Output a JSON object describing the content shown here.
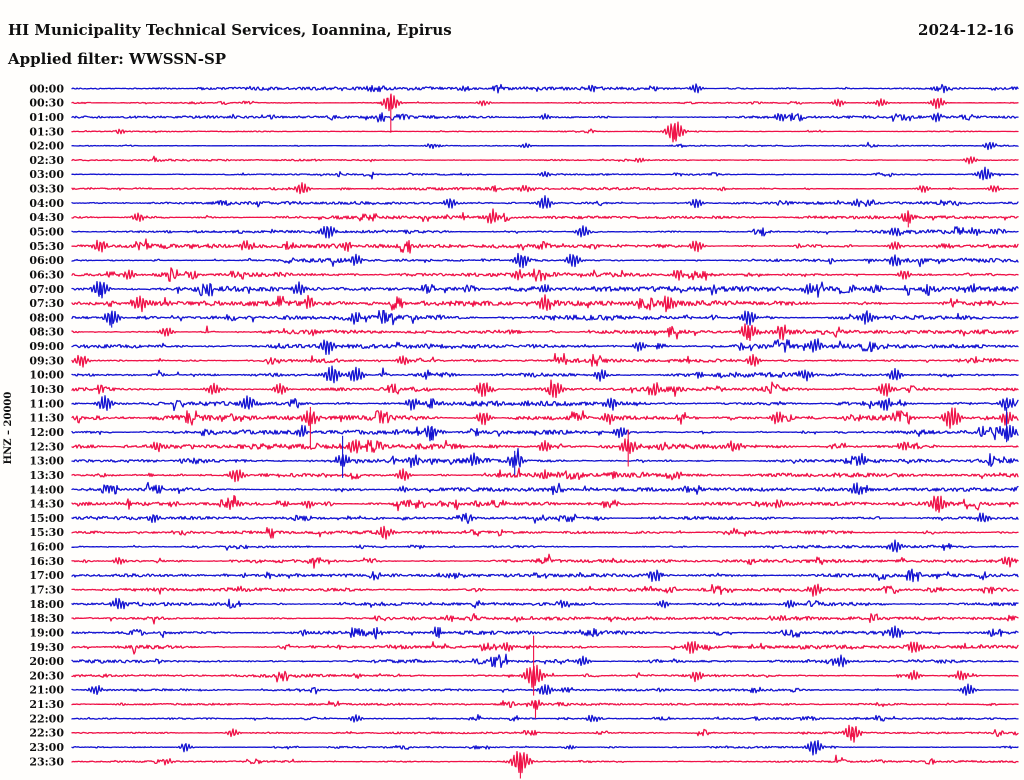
{
  "header": {
    "title": "HI Municipality Technical Services, Ioannina, Epirus",
    "date": "2024-12-16",
    "filter": "Applied filter: WWSSN-SP"
  },
  "chart_data": {
    "type": "line",
    "subtype": "helicorder-dayplot",
    "title": "HI Municipality Technical Services, Ioannina, Epirus",
    "date": "2024-12-16",
    "applied_filter": "WWSSN-SP",
    "y_axis_label": "HNZ – 20000",
    "minutes_per_row": 30,
    "n_rows": 48,
    "x_range": [
      0,
      30
    ],
    "grid": false,
    "legend": false,
    "background": "#fffefc",
    "palette": {
      "blue": "#1312d1",
      "red": "#ef1147"
    },
    "rows": [
      {
        "time": "00:00",
        "color": "blue",
        "noise": 1.4
      },
      {
        "time": "00:30",
        "color": "red",
        "noise": 0.5
      },
      {
        "time": "01:00",
        "color": "blue",
        "noise": 1.3
      },
      {
        "time": "01:30",
        "color": "red",
        "noise": 0.6
      },
      {
        "time": "02:00",
        "color": "blue",
        "noise": 0.6
      },
      {
        "time": "02:30",
        "color": "red",
        "noise": 0.9
      },
      {
        "time": "03:00",
        "color": "blue",
        "noise": 0.7
      },
      {
        "time": "03:30",
        "color": "red",
        "noise": 1.2
      },
      {
        "time": "04:00",
        "color": "blue",
        "noise": 1.4
      },
      {
        "time": "04:30",
        "color": "red",
        "noise": 1.4
      },
      {
        "time": "05:00",
        "color": "blue",
        "noise": 1.8
      },
      {
        "time": "05:30",
        "color": "red",
        "noise": 1.8
      },
      {
        "time": "06:00",
        "color": "blue",
        "noise": 2.0
      },
      {
        "time": "06:30",
        "color": "red",
        "noise": 1.9
      },
      {
        "time": "07:00",
        "color": "blue",
        "noise": 2.3
      },
      {
        "time": "07:30",
        "color": "red",
        "noise": 2.3
      },
      {
        "time": "08:00",
        "color": "blue",
        "noise": 2.3
      },
      {
        "time": "08:30",
        "color": "red",
        "noise": 2.1
      },
      {
        "time": "09:00",
        "color": "blue",
        "noise": 2.1
      },
      {
        "time": "09:30",
        "color": "red",
        "noise": 2.1
      },
      {
        "time": "10:00",
        "color": "blue",
        "noise": 2.4
      },
      {
        "time": "10:30",
        "color": "red",
        "noise": 2.4
      },
      {
        "time": "11:00",
        "color": "blue",
        "noise": 2.4
      },
      {
        "time": "11:30",
        "color": "red",
        "noise": 2.4
      },
      {
        "time": "12:00",
        "color": "blue",
        "noise": 2.2
      },
      {
        "time": "12:30",
        "color": "red",
        "noise": 2.5
      },
      {
        "time": "13:00",
        "color": "blue",
        "noise": 2.1
      },
      {
        "time": "13:30",
        "color": "red",
        "noise": 2.0
      },
      {
        "time": "14:00",
        "color": "blue",
        "noise": 1.6
      },
      {
        "time": "14:30",
        "color": "red",
        "noise": 1.6
      },
      {
        "time": "15:00",
        "color": "blue",
        "noise": 1.5
      },
      {
        "time": "15:30",
        "color": "red",
        "noise": 1.5
      },
      {
        "time": "16:00",
        "color": "blue",
        "noise": 1.5
      },
      {
        "time": "16:30",
        "color": "red",
        "noise": 1.5
      },
      {
        "time": "17:00",
        "color": "blue",
        "noise": 1.4
      },
      {
        "time": "17:30",
        "color": "red",
        "noise": 1.5
      },
      {
        "time": "18:00",
        "color": "blue",
        "noise": 1.6
      },
      {
        "time": "18:30",
        "color": "red",
        "noise": 1.6
      },
      {
        "time": "19:00",
        "color": "blue",
        "noise": 1.6
      },
      {
        "time": "19:30",
        "color": "red",
        "noise": 1.7
      },
      {
        "time": "20:00",
        "color": "blue",
        "noise": 1.7
      },
      {
        "time": "20:30",
        "color": "red",
        "noise": 1.6
      },
      {
        "time": "21:00",
        "color": "blue",
        "noise": 1.0
      },
      {
        "time": "21:30",
        "color": "red",
        "noise": 0.9
      },
      {
        "time": "22:00",
        "color": "blue",
        "noise": 1.0
      },
      {
        "time": "22:30",
        "color": "red",
        "noise": 0.8
      },
      {
        "time": "23:00",
        "color": "blue",
        "noise": 0.9
      },
      {
        "time": "23:30",
        "color": "red",
        "noise": 0.8
      }
    ],
    "events": [
      [
        0,
        0.55,
        3
      ],
      [
        0,
        0.66,
        4
      ],
      [
        0,
        0.92,
        5
      ],
      [
        1,
        0.337,
        9,
        30,
        8
      ],
      [
        1,
        0.435,
        3
      ],
      [
        1,
        0.81,
        4
      ],
      [
        1,
        0.855,
        4
      ],
      [
        1,
        0.915,
        6
      ],
      [
        2,
        0.5,
        3
      ],
      [
        2,
        0.75,
        5
      ],
      [
        2,
        0.915,
        4
      ],
      [
        3,
        0.05,
        3
      ],
      [
        3,
        0.637,
        11,
        8,
        6
      ],
      [
        4,
        0.38,
        2.5
      ],
      [
        4,
        0.48,
        2.5
      ],
      [
        4,
        0.97,
        4
      ],
      [
        5,
        0.6,
        3
      ],
      [
        5,
        0.95,
        4
      ],
      [
        6,
        0.5,
        3
      ],
      [
        6,
        0.965,
        7
      ],
      [
        7,
        0.243,
        6
      ],
      [
        7,
        0.48,
        4
      ],
      [
        7,
        0.9,
        4
      ],
      [
        7,
        0.975,
        4
      ],
      [
        8,
        0.4,
        5
      ],
      [
        8,
        0.5,
        7
      ],
      [
        8,
        0.66,
        5
      ],
      [
        8,
        0.83,
        4
      ],
      [
        9,
        0.07,
        4
      ],
      [
        9,
        0.445,
        7
      ],
      [
        9,
        0.884,
        6,
        10,
        4
      ],
      [
        10,
        0.27,
        7
      ],
      [
        10,
        0.54,
        6
      ],
      [
        10,
        0.87,
        4
      ],
      [
        10,
        0.955,
        4
      ],
      [
        11,
        0.03,
        6
      ],
      [
        11,
        0.185,
        5
      ],
      [
        11,
        0.29,
        5
      ],
      [
        11,
        0.66,
        6
      ],
      [
        11,
        0.87,
        5
      ],
      [
        12,
        0.3,
        5
      ],
      [
        12,
        0.475,
        8
      ],
      [
        12,
        0.53,
        7
      ],
      [
        12,
        0.87,
        6
      ],
      [
        13,
        0.06,
        5
      ],
      [
        13,
        0.47,
        5
      ],
      [
        13,
        0.64,
        5
      ],
      [
        13,
        0.88,
        5
      ],
      [
        14,
        0.03,
        9,
        6,
        4
      ],
      [
        14,
        0.24,
        6
      ],
      [
        14,
        0.5,
        5
      ],
      [
        14,
        0.78,
        6
      ],
      [
        14,
        0.95,
        5
      ],
      [
        15,
        0.072,
        8
      ],
      [
        15,
        0.25,
        5
      ],
      [
        15,
        0.5,
        8
      ],
      [
        15,
        0.63,
        8,
        6,
        0
      ],
      [
        16,
        0.042,
        8,
        10,
        4
      ],
      [
        16,
        0.3,
        5
      ],
      [
        16,
        0.715,
        8
      ],
      [
        16,
        0.84,
        7
      ],
      [
        17,
        0.1,
        5
      ],
      [
        17,
        0.715,
        9,
        6,
        4
      ],
      [
        17,
        0.75,
        7
      ],
      [
        18,
        0.27,
        8
      ],
      [
        18,
        0.6,
        5
      ],
      [
        18,
        0.785,
        7
      ],
      [
        19,
        0.01,
        6
      ],
      [
        19,
        0.35,
        5
      ],
      [
        19,
        0.72,
        6
      ],
      [
        20,
        0.275,
        9
      ],
      [
        20,
        0.3,
        8
      ],
      [
        20,
        0.56,
        6
      ],
      [
        20,
        0.775,
        6
      ],
      [
        20,
        0.87,
        6
      ],
      [
        21,
        0.15,
        6
      ],
      [
        21,
        0.22,
        6
      ],
      [
        21,
        0.435,
        8
      ],
      [
        21,
        0.51,
        9
      ],
      [
        21,
        0.615,
        6
      ],
      [
        21,
        0.86,
        7
      ],
      [
        22,
        0.035,
        8
      ],
      [
        22,
        0.185,
        8
      ],
      [
        22,
        0.36,
        6
      ],
      [
        22,
        0.57,
        6
      ],
      [
        22,
        0.86,
        6
      ],
      [
        22,
        0.988,
        7
      ],
      [
        23,
        0.252,
        8,
        29,
        11
      ],
      [
        23,
        0.435,
        7
      ],
      [
        23,
        0.567,
        6
      ],
      [
        23,
        0.745,
        6
      ],
      [
        23,
        0.93,
        11
      ],
      [
        23,
        0.988,
        7
      ],
      [
        24,
        0.243,
        6
      ],
      [
        24,
        0.38,
        7,
        8,
        0
      ],
      [
        24,
        0.58,
        6
      ],
      [
        24,
        0.988,
        9,
        10,
        25
      ],
      [
        25,
        0.09,
        5
      ],
      [
        25,
        0.3,
        6
      ],
      [
        25,
        0.5,
        6
      ],
      [
        25,
        0.588,
        8,
        20,
        17
      ],
      [
        25,
        0.7,
        5
      ],
      [
        25,
        0.88,
        5
      ],
      [
        26,
        0.286,
        7,
        17,
        25
      ],
      [
        26,
        0.36,
        6
      ],
      [
        26,
        0.425,
        6
      ],
      [
        26,
        0.468,
        7,
        14,
        10
      ],
      [
        26,
        0.835,
        6
      ],
      [
        27,
        0.174,
        7
      ],
      [
        27,
        0.35,
        6
      ],
      [
        27,
        0.5,
        5
      ],
      [
        28,
        0.35,
        3
      ],
      [
        28,
        0.83,
        5
      ],
      [
        29,
        0.172,
        5,
        0,
        8
      ],
      [
        29,
        0.25,
        4
      ],
      [
        29,
        0.915,
        9,
        6,
        0
      ],
      [
        30,
        0.086,
        4
      ],
      [
        30,
        0.963,
        5
      ],
      [
        31,
        0.33,
        6
      ],
      [
        31,
        0.7,
        3
      ],
      [
        32,
        0.87,
        6
      ],
      [
        33,
        0.05,
        4
      ],
      [
        33,
        0.99,
        5
      ],
      [
        34,
        0.615,
        6
      ],
      [
        35,
        0.785,
        6
      ],
      [
        36,
        0.05,
        6
      ],
      [
        36,
        0.52,
        4
      ],
      [
        36,
        0.625,
        4
      ],
      [
        36,
        0.76,
        4
      ],
      [
        37,
        0.4,
        3
      ],
      [
        37,
        0.75,
        3
      ],
      [
        38,
        0.323,
        4
      ],
      [
        38,
        0.87,
        7
      ],
      [
        39,
        0.46,
        4
      ],
      [
        39,
        0.655,
        7
      ],
      [
        39,
        0.89,
        6
      ],
      [
        40,
        0.54,
        5
      ],
      [
        40,
        0.813,
        6
      ],
      [
        41,
        0.488,
        12,
        20,
        40
      ],
      [
        41,
        0.66,
        5
      ],
      [
        41,
        0.89,
        5
      ],
      [
        41,
        0.94,
        5
      ],
      [
        42,
        0.025,
        5
      ],
      [
        42,
        0.5,
        6
      ],
      [
        42,
        0.947,
        6
      ],
      [
        43,
        0.49,
        5,
        14,
        4
      ],
      [
        44,
        0.3,
        4
      ],
      [
        44,
        0.55,
        4
      ],
      [
        45,
        0.17,
        4
      ],
      [
        45,
        0.825,
        9,
        4,
        0
      ],
      [
        46,
        0.12,
        4
      ],
      [
        46,
        0.785,
        8
      ],
      [
        47,
        0.1,
        3
      ],
      [
        47,
        0.474,
        12,
        17,
        6
      ]
    ]
  }
}
